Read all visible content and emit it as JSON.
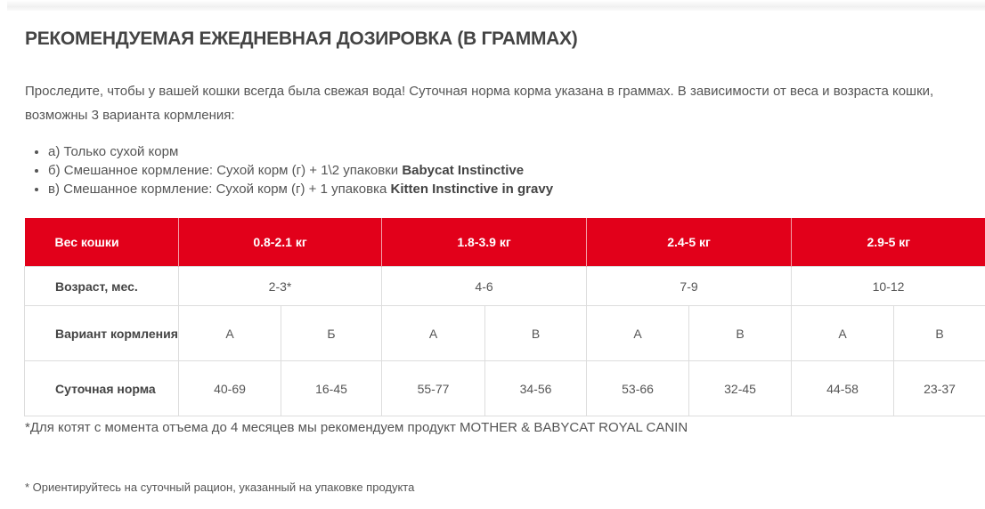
{
  "title": "РЕКОМЕНДУЕМАЯ ЕЖЕДНЕВНАЯ ДОЗИРОВКА (В ГРАММАХ)",
  "intro": "Проследите, чтобы у вашей кошки всегда была свежая вода! Суточная норма корма указана в граммах. В зависимости от веса и возраста кошки, возможны 3 варианта кормления:",
  "options": [
    {
      "text": "а) Только сухой корм",
      "bold": ""
    },
    {
      "text": "б) Смешанное кормление: Сухой корм (г) + 1\\2 упаковки ",
      "bold": "Babycat Instinctive"
    },
    {
      "text": "в) Смешанное кормление: Сухой корм (г) + 1 упаковка ",
      "bold": "Kitten Instinctive in gravy"
    }
  ],
  "table": {
    "header_label": "Вес кошки",
    "weights": [
      "0.8-2.1 кг",
      "1.8-3.9 кг",
      "2.4-5 кг",
      "2.9-5 кг"
    ],
    "age_label": "Возраст, мес.",
    "ages": [
      "2-3*",
      "4-6",
      "7-9",
      "10-12"
    ],
    "variant_label": "Вариант кормления",
    "variants": [
      "А",
      "Б",
      "А",
      "В",
      "А",
      "В",
      "А",
      "В"
    ],
    "norm_label": "Суточная норма",
    "norms": [
      "40-69",
      "16-45",
      "55-77",
      "34-56",
      "53-66",
      "32-45",
      "44-58",
      "23-37"
    ],
    "header_color": "#e2001a"
  },
  "note1": "*Для котят с момента отъема до 4 месяцев мы рекомендуем продукт MOTHER & BABYCAT ROYAL CANIN",
  "note2": "* Ориентируйтесь на суточный рацион, указанный на упаковке продукта"
}
